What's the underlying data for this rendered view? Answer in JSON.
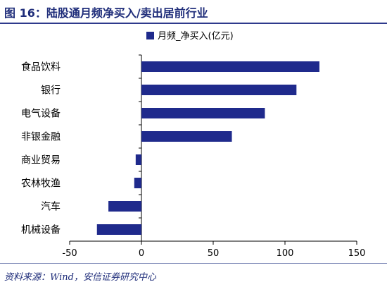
{
  "header": {
    "title": "图 16：陆股通月频净买入/卖出居前行业"
  },
  "footer": {
    "source": "资料来源：Wind，安信证券研究中心"
  },
  "colors": {
    "bar": "#1f2a8c",
    "title": "#1f2d7a"
  },
  "chart_data": {
    "type": "bar",
    "orientation": "horizontal",
    "categories": [
      "食品饮料",
      "银行",
      "电气设备",
      "非银金融",
      "商业贸易",
      "农林牧渔",
      "汽车",
      "机械设备"
    ],
    "series": [
      {
        "name": "月频_净买入(亿元)",
        "values": [
          124,
          108,
          86,
          63,
          -4,
          -5,
          -23,
          -31
        ]
      }
    ],
    "xlim": [
      -50,
      150
    ],
    "xticks": [
      -50,
      0,
      50,
      100,
      150
    ],
    "grid": false,
    "legend": "top-center"
  }
}
